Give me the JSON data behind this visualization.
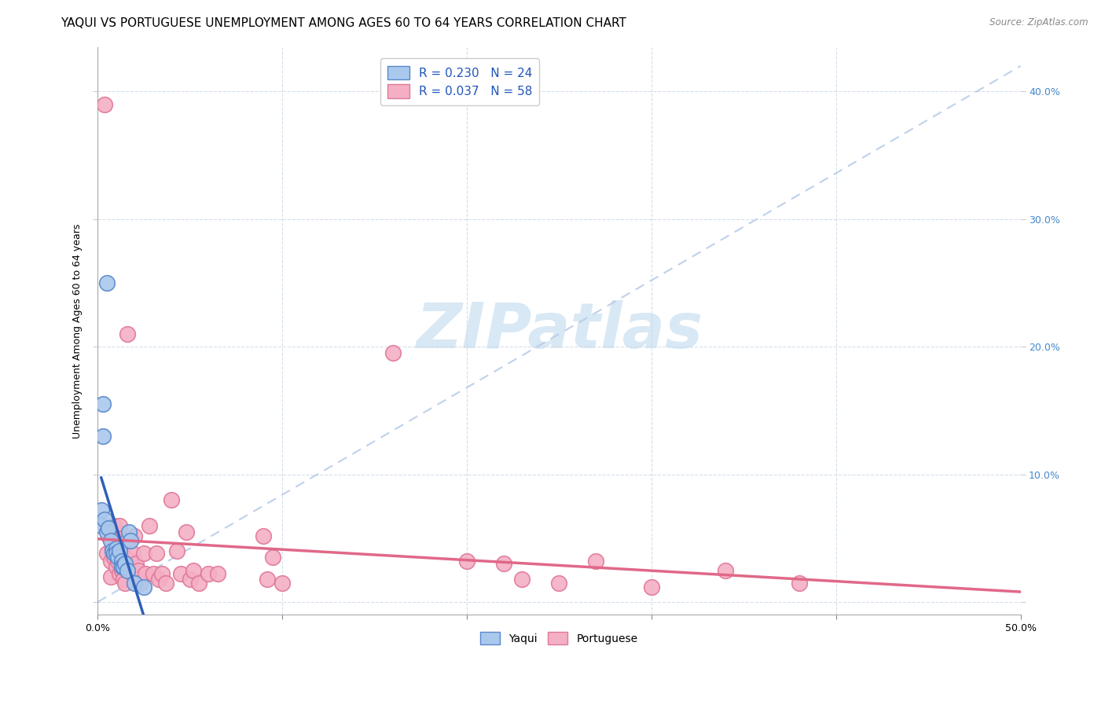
{
  "title": "YAQUI VS PORTUGUESE UNEMPLOYMENT AMONG AGES 60 TO 64 YEARS CORRELATION CHART",
  "source": "Source: ZipAtlas.com",
  "ylabel": "Unemployment Among Ages 60 to 64 years",
  "xlim": [
    0.0,
    0.5
  ],
  "ylim": [
    -0.01,
    0.435
  ],
  "xticks": [
    0.0,
    0.1,
    0.2,
    0.3,
    0.4,
    0.5
  ],
  "yticks": [
    0.0,
    0.1,
    0.2,
    0.3,
    0.4
  ],
  "xticklabels": [
    "0.0%",
    "",
    "",
    "",
    "",
    "50.0%"
  ],
  "yticklabels_right": [
    "",
    "10.0%",
    "20.0%",
    "30.0%",
    "40.0%"
  ],
  "watermark": "ZIPatlas",
  "legend_r_yaqui": "R = 0.230",
  "legend_n_yaqui": "N = 24",
  "legend_r_port": "R = 0.037",
  "legend_n_port": "N = 58",
  "yaqui_color": "#aac8ec",
  "port_color": "#f4afc5",
  "yaqui_edge_color": "#5888cc",
  "port_edge_color": "#e07898",
  "yaqui_line_color": "#3060b8",
  "port_line_color": "#e06888",
  "trendline_color": "#b8cce8",
  "yaqui_scatter": [
    [
      0.002,
      0.072
    ],
    [
      0.002,
      0.06
    ],
    [
      0.003,
      0.155
    ],
    [
      0.003,
      0.13
    ],
    [
      0.004,
      0.065
    ],
    [
      0.005,
      0.055
    ],
    [
      0.005,
      0.25
    ],
    [
      0.006,
      0.058
    ],
    [
      0.007,
      0.048
    ],
    [
      0.008,
      0.04
    ],
    [
      0.009,
      0.038
    ],
    [
      0.01,
      0.042
    ],
    [
      0.01,
      0.038
    ],
    [
      0.011,
      0.035
    ],
    [
      0.012,
      0.04
    ],
    [
      0.013,
      0.032
    ],
    [
      0.013,
      0.028
    ],
    [
      0.014,
      0.028
    ],
    [
      0.015,
      0.03
    ],
    [
      0.016,
      0.025
    ],
    [
      0.017,
      0.055
    ],
    [
      0.018,
      0.048
    ],
    [
      0.02,
      0.015
    ],
    [
      0.025,
      0.012
    ]
  ],
  "port_scatter": [
    [
      0.004,
      0.39
    ],
    [
      0.005,
      0.038
    ],
    [
      0.006,
      0.052
    ],
    [
      0.007,
      0.032
    ],
    [
      0.007,
      0.02
    ],
    [
      0.008,
      0.042
    ],
    [
      0.008,
      0.05
    ],
    [
      0.009,
      0.06
    ],
    [
      0.009,
      0.035
    ],
    [
      0.01,
      0.028
    ],
    [
      0.01,
      0.045
    ],
    [
      0.011,
      0.032
    ],
    [
      0.012,
      0.06
    ],
    [
      0.012,
      0.022
    ],
    [
      0.013,
      0.05
    ],
    [
      0.013,
      0.025
    ],
    [
      0.014,
      0.042
    ],
    [
      0.014,
      0.018
    ],
    [
      0.015,
      0.015
    ],
    [
      0.016,
      0.048
    ],
    [
      0.016,
      0.21
    ],
    [
      0.018,
      0.032
    ],
    [
      0.019,
      0.038
    ],
    [
      0.019,
      0.022
    ],
    [
      0.02,
      0.052
    ],
    [
      0.021,
      0.03
    ],
    [
      0.022,
      0.025
    ],
    [
      0.023,
      0.015
    ],
    [
      0.025,
      0.038
    ],
    [
      0.026,
      0.022
    ],
    [
      0.028,
      0.06
    ],
    [
      0.03,
      0.022
    ],
    [
      0.032,
      0.038
    ],
    [
      0.033,
      0.018
    ],
    [
      0.035,
      0.022
    ],
    [
      0.037,
      0.015
    ],
    [
      0.04,
      0.08
    ],
    [
      0.043,
      0.04
    ],
    [
      0.045,
      0.022
    ],
    [
      0.048,
      0.055
    ],
    [
      0.05,
      0.018
    ],
    [
      0.052,
      0.025
    ],
    [
      0.055,
      0.015
    ],
    [
      0.06,
      0.022
    ],
    [
      0.065,
      0.022
    ],
    [
      0.09,
      0.052
    ],
    [
      0.092,
      0.018
    ],
    [
      0.095,
      0.035
    ],
    [
      0.1,
      0.015
    ],
    [
      0.16,
      0.195
    ],
    [
      0.2,
      0.032
    ],
    [
      0.22,
      0.03
    ],
    [
      0.23,
      0.018
    ],
    [
      0.25,
      0.015
    ],
    [
      0.27,
      0.032
    ],
    [
      0.3,
      0.012
    ],
    [
      0.34,
      0.025
    ],
    [
      0.38,
      0.015
    ]
  ],
  "background_color": "#ffffff",
  "grid_color": "#c8d8e8",
  "title_fontsize": 11,
  "axis_label_fontsize": 9,
  "tick_fontsize": 9,
  "tick_color": "#4488cc",
  "watermark_color": "#d8e8f4",
  "watermark_fontsize": 58,
  "legend_fontsize": 11,
  "legend_text_color": "#2255bb"
}
